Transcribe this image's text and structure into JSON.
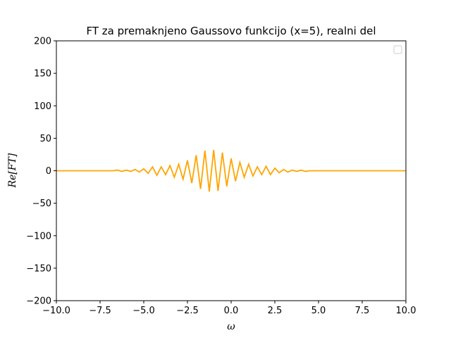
{
  "chart_data": {
    "type": "line",
    "title": "FT za premaknjeno Gaussovo funkcijo (x=5), realni del",
    "xlabel": "ω",
    "ylabel": "Re[FT]",
    "xlim": [
      -10,
      10
    ],
    "ylim": [
      -200,
      200
    ],
    "x_ticks": [
      -10,
      -7.5,
      -5,
      -2.5,
      0,
      2.5,
      5,
      7.5,
      10
    ],
    "x_tick_labels": [
      "−10.0",
      "−7.5",
      "−5.0",
      "−2.5",
      "0.0",
      "2.5",
      "5.0",
      "7.5",
      "10.0"
    ],
    "y_ticks": [
      -200,
      -150,
      -100,
      -50,
      0,
      50,
      100,
      150,
      200
    ],
    "y_tick_labels": [
      "−200",
      "−150",
      "−100",
      "−50",
      "0",
      "50",
      "100",
      "150",
      "200"
    ],
    "grid": false,
    "legend": "upper right (empty)",
    "colors": {
      "series": "#ffa500"
    },
    "series": [
      {
        "x": [
          -10.0,
          -9.75,
          -9.5,
          -9.25,
          -9.0,
          -8.75,
          -8.5,
          -8.25,
          -8.0,
          -7.75,
          -7.5,
          -7.25,
          -7.0,
          -6.75,
          -6.5,
          -6.25,
          -6.0,
          -5.75,
          -5.5,
          -5.25,
          -5.0,
          -4.75,
          -4.5,
          -4.25,
          -4.0,
          -3.75,
          -3.5,
          -3.25,
          -3.0,
          -2.75,
          -2.5,
          -2.25,
          -2.0,
          -1.75,
          -1.5,
          -1.25,
          -1.0,
          -0.75,
          -0.5,
          -0.25,
          0.0,
          0.25,
          0.5,
          0.75,
          1.0,
          1.25,
          1.5,
          1.75,
          2.0,
          2.25,
          2.5,
          2.75,
          3.0,
          3.25,
          3.5,
          3.75,
          4.0,
          4.25,
          4.5,
          4.75,
          5.0,
          5.25,
          5.5,
          5.75,
          6.0,
          6.25,
          6.5,
          6.75,
          7.0,
          7.25,
          7.5,
          7.75,
          8.0,
          8.25,
          8.5,
          8.75,
          9.0,
          9.25,
          9.5,
          9.75,
          10.0
        ],
        "y": [
          0,
          0,
          0,
          0,
          0,
          0,
          0,
          0,
          0,
          0,
          0,
          0,
          0,
          0,
          1,
          -1,
          1,
          -1,
          2,
          -2,
          3,
          -4,
          6,
          -7,
          6,
          -6,
          8,
          -10,
          10,
          -13,
          16,
          -19,
          24,
          -28,
          31,
          -32,
          32,
          -31,
          28,
          -24,
          19,
          -16,
          13,
          -10,
          10,
          -8,
          6,
          -6,
          7,
          -6,
          4,
          -3,
          2,
          -2,
          1,
          -1,
          1,
          -1,
          0,
          0,
          0,
          0,
          0,
          0,
          0,
          0,
          0,
          0,
          0,
          0,
          0,
          0,
          0,
          0,
          0,
          0,
          0,
          0,
          0,
          0,
          0
        ]
      }
    ]
  }
}
